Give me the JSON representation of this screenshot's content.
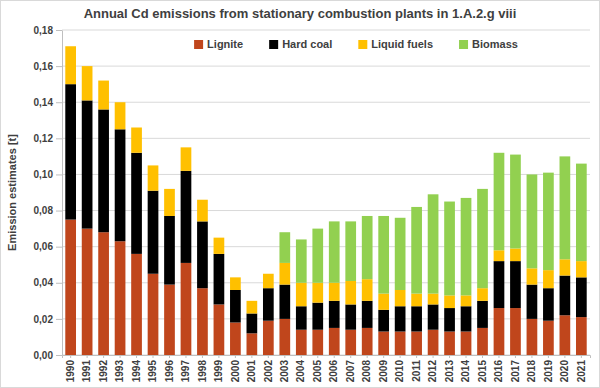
{
  "chart_data": {
    "type": "bar",
    "stacked": true,
    "title": "Annual Cd emissions from stationary combustion plants in 1.A.2.g viii",
    "y_label": "Emission estimates [t]",
    "categories": [
      "1990",
      "1991",
      "1992",
      "1993",
      "1994",
      "1995",
      "1996",
      "1997",
      "1998",
      "1999",
      "2000",
      "2001",
      "2002",
      "2003",
      "2004",
      "2005",
      "2006",
      "2007",
      "2008",
      "2009",
      "2010",
      "2011",
      "2012",
      "2013",
      "2014",
      "2015",
      "2016",
      "2017",
      "2018",
      "2019",
      "2020",
      "2021"
    ],
    "series": [
      {
        "name": "Lignite",
        "color": "#c0461c",
        "values": [
          0.075,
          0.07,
          0.068,
          0.063,
          0.056,
          0.045,
          0.039,
          0.051,
          0.037,
          0.028,
          0.018,
          0.012,
          0.019,
          0.02,
          0.014,
          0.014,
          0.015,
          0.014,
          0.015,
          0.013,
          0.013,
          0.013,
          0.014,
          0.013,
          0.013,
          0.015,
          0.026,
          0.026,
          0.02,
          0.019,
          0.022,
          0.021
        ]
      },
      {
        "name": "Hard coal",
        "color": "#000000",
        "values": [
          0.075,
          0.071,
          0.068,
          0.062,
          0.056,
          0.046,
          0.038,
          0.051,
          0.037,
          0.028,
          0.018,
          0.011,
          0.018,
          0.019,
          0.013,
          0.015,
          0.015,
          0.014,
          0.015,
          0.012,
          0.014,
          0.014,
          0.014,
          0.013,
          0.014,
          0.015,
          0.026,
          0.026,
          0.019,
          0.018,
          0.022,
          0.022
        ]
      },
      {
        "name": "Liquid fuels",
        "color": "#ffc000",
        "values": [
          0.021,
          0.019,
          0.016,
          0.015,
          0.014,
          0.014,
          0.015,
          0.013,
          0.012,
          0.009,
          0.007,
          0.007,
          0.008,
          0.012,
          0.013,
          0.011,
          0.01,
          0.013,
          0.012,
          0.009,
          0.009,
          0.007,
          0.006,
          0.007,
          0.006,
          0.007,
          0.006,
          0.007,
          0.009,
          0.01,
          0.009,
          0.009
        ]
      },
      {
        "name": "Biomass",
        "color": "#92d050",
        "values": [
          0,
          0,
          0,
          0,
          0,
          0,
          0,
          0,
          0,
          0,
          0,
          0,
          0,
          0.017,
          0.024,
          0.03,
          0.034,
          0.033,
          0.035,
          0.043,
          0.04,
          0.048,
          0.055,
          0.052,
          0.054,
          0.055,
          0.054,
          0.052,
          0.052,
          0.054,
          0.057,
          0.054
        ]
      }
    ],
    "ylim": [
      0,
      0.18
    ],
    "yticks": [
      {
        "value": 0,
        "label": "0,00"
      },
      {
        "value": 0.02,
        "label": "0,02"
      },
      {
        "value": 0.04,
        "label": "0,04"
      },
      {
        "value": 0.06,
        "label": "0,06"
      },
      {
        "value": 0.08,
        "label": "0,08"
      },
      {
        "value": 0.1,
        "label": "0,10"
      },
      {
        "value": 0.12,
        "label": "0,12"
      },
      {
        "value": 0.14,
        "label": "0,14"
      },
      {
        "value": 0.16,
        "label": "0,16"
      },
      {
        "value": 0.18,
        "label": "0,18"
      }
    ],
    "grid": true,
    "legend": "top"
  }
}
